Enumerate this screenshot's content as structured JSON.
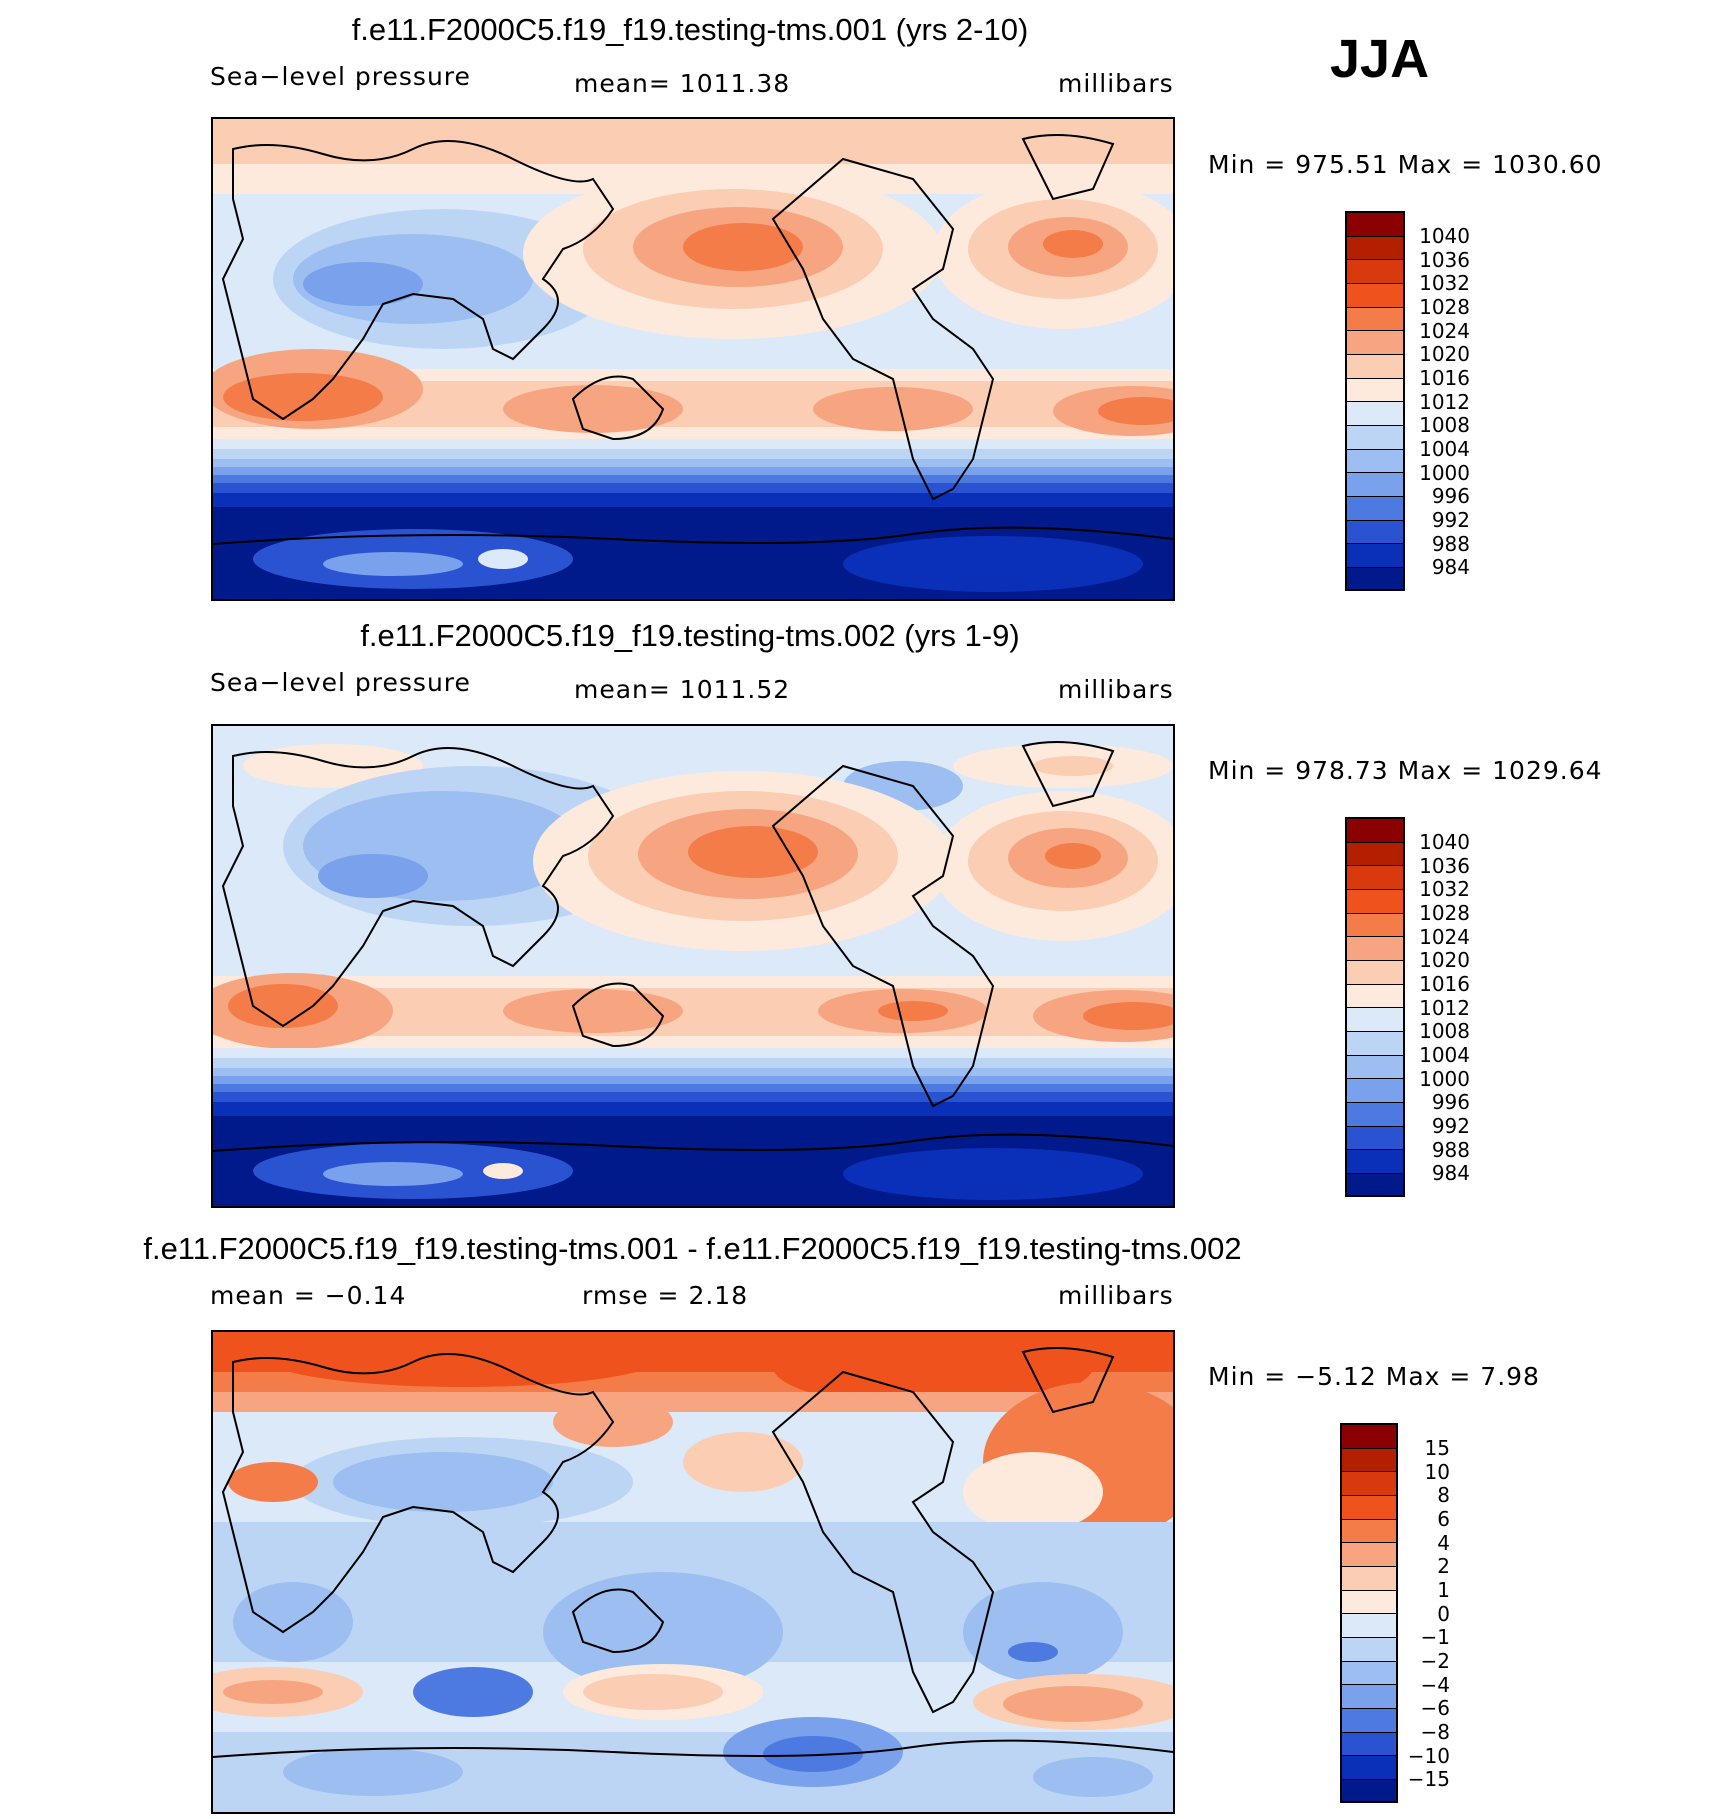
{
  "season": "JJA",
  "panels": [
    {
      "title": "f.e11.F2000C5.f19_f19.testing-tms.001 (yrs 2-10)",
      "variable": "Sea−level pressure",
      "stat_text": "mean=  1011.38",
      "units": "millibars",
      "min_max": "Min  =  975.51  Max  =  1030.60",
      "min": 975.51,
      "max": 1030.6,
      "mean": 1011.38,
      "legend_levels": [
        "1040",
        "1036",
        "1032",
        "1028",
        "1024",
        "1020",
        "1016",
        "1012",
        "1008",
        "1004",
        "1000",
        "996",
        "992",
        "988",
        "984"
      ]
    },
    {
      "title": "f.e11.F2000C5.f19_f19.testing-tms.002 (yrs 1-9)",
      "variable": "Sea−level pressure",
      "stat_text": "mean=  1011.52",
      "units": "millibars",
      "min_max": "Min  =  978.73  Max  =  1029.64",
      "min": 978.73,
      "max": 1029.64,
      "mean": 1011.52,
      "legend_levels": [
        "1040",
        "1036",
        "1032",
        "1028",
        "1024",
        "1020",
        "1016",
        "1012",
        "1008",
        "1004",
        "1000",
        "996",
        "992",
        "988",
        "984"
      ]
    },
    {
      "title": "f.e11.F2000C5.f19_f19.testing-tms.001 - f.e11.F2000C5.f19_f19.testing-tms.002",
      "stat_left": "mean  =   −0.14",
      "stat_mid": "rmse  =     2.18",
      "units": "millibars",
      "min_max": "Min  =   −5.12  Max  =     7.98",
      "min": -5.12,
      "max": 7.98,
      "mean": -0.14,
      "rmse": 2.18,
      "legend_levels": [
        "15",
        "10",
        "8",
        "6",
        "4",
        "2",
        "1",
        "0",
        "−1",
        "−2",
        "−4",
        "−6",
        "−8",
        "−10",
        "−15"
      ]
    }
  ],
  "colors": {
    "ramp_high_to_low": [
      "#8b0000",
      "#b22000",
      "#d83a0d",
      "#f0521e",
      "#f47c49",
      "#f7a580",
      "#fbcdb3",
      "#fdeadc",
      "#dbe9f8",
      "#bcd5f5",
      "#9cbef0",
      "#7aa1eb",
      "#4d7ae0",
      "#2a53d2",
      "#0a2fb8",
      "#001a8c"
    ]
  }
}
